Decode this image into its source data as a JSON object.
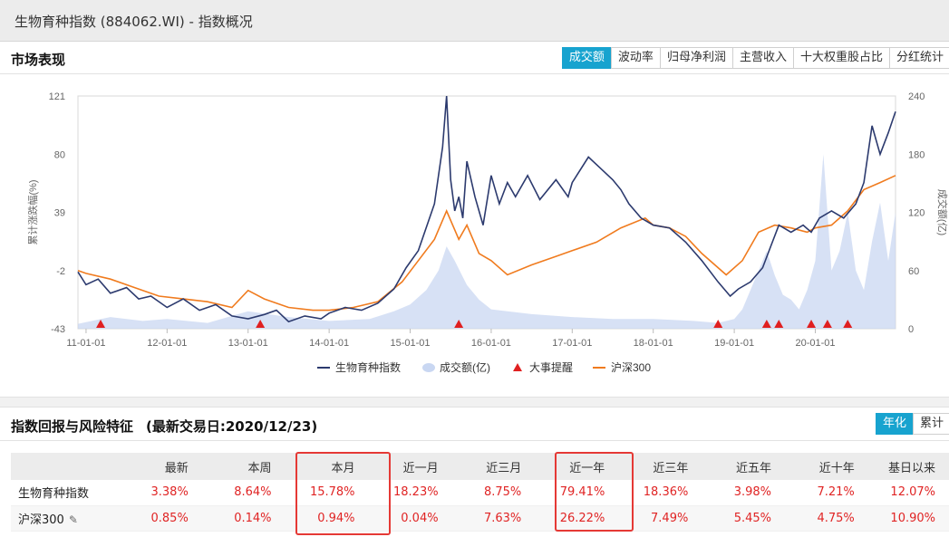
{
  "window_title": "生物育种指数 (884062.WI) - 指数概况",
  "market": {
    "title": "市场表现",
    "tabs": [
      {
        "label": "成交额",
        "active": true
      },
      {
        "label": "波动率",
        "active": false
      },
      {
        "label": "归母净利润",
        "active": false
      },
      {
        "label": "主营收入",
        "active": false
      },
      {
        "label": "十大权重股占比",
        "active": false
      },
      {
        "label": "分红统计",
        "active": false
      }
    ]
  },
  "chart_data": {
    "type": "line",
    "ylabel": "累计涨跌幅(%)",
    "y2label": "成交额(亿)",
    "yticks": [
      "121",
      "80",
      "39",
      "-2",
      "-43"
    ],
    "y2ticks": [
      "240",
      "180",
      "120",
      "60",
      "0"
    ],
    "ylim": [
      -43,
      121
    ],
    "y2lim": [
      0,
      240
    ],
    "xticks": [
      "11-01-01",
      "12-01-01",
      "13-01-01",
      "14-01-01",
      "15-01-01",
      "16-01-01",
      "17-01-01",
      "18-01-01",
      "19-01-01",
      "20-01-01"
    ],
    "xlim": [
      2010.9,
      2020.99
    ],
    "legend": [
      "生物育种指数",
      "成交额(亿)",
      "大事提醒",
      "沪深300"
    ],
    "colors": {
      "index": "#2c3a6e",
      "volume": "#c9d7f2",
      "events": "#e02020",
      "hs300": "#f07b1e"
    },
    "series": [
      {
        "name": "生物育种指数",
        "x": [
          2010.9,
          2011.0,
          2011.15,
          2011.3,
          2011.5,
          2011.65,
          2011.8,
          2012.0,
          2012.2,
          2012.4,
          2012.6,
          2012.8,
          2013.0,
          2013.2,
          2013.35,
          2013.5,
          2013.7,
          2013.9,
          2014.0,
          2014.2,
          2014.4,
          2014.6,
          2014.8,
          2014.95,
          2015.1,
          2015.3,
          2015.4,
          2015.45,
          2015.5,
          2015.55,
          2015.6,
          2015.65,
          2015.7,
          2015.8,
          2015.9,
          2016.0,
          2016.1,
          2016.2,
          2016.3,
          2016.45,
          2016.6,
          2016.8,
          2016.95,
          2017.0,
          2017.2,
          2017.35,
          2017.5,
          2017.6,
          2017.7,
          2017.85,
          2018.0,
          2018.2,
          2018.4,
          2018.6,
          2018.8,
          2018.95,
          2019.05,
          2019.2,
          2019.35,
          2019.45,
          2019.55,
          2019.7,
          2019.85,
          2019.95,
          2020.05,
          2020.2,
          2020.35,
          2020.5,
          2020.6,
          2020.7,
          2020.8,
          2020.9,
          2020.99
        ],
        "values": [
          -3,
          -12,
          -8,
          -18,
          -14,
          -22,
          -20,
          -28,
          -22,
          -30,
          -26,
          -34,
          -36,
          -33,
          -30,
          -38,
          -34,
          -36,
          -32,
          -28,
          -30,
          -25,
          -15,
          0,
          12,
          45,
          85,
          121,
          62,
          40,
          50,
          35,
          75,
          50,
          30,
          65,
          45,
          60,
          50,
          65,
          48,
          62,
          50,
          60,
          78,
          70,
          62,
          55,
          45,
          35,
          30,
          28,
          18,
          5,
          -10,
          -20,
          -15,
          -10,
          0,
          15,
          30,
          25,
          30,
          25,
          35,
          40,
          35,
          45,
          60,
          100,
          80,
          95,
          110
        ]
      },
      {
        "name": "沪深300",
        "x": [
          2010.9,
          2011.0,
          2011.3,
          2011.6,
          2011.9,
          2012.2,
          2012.5,
          2012.8,
          2013.0,
          2013.2,
          2013.5,
          2013.8,
          2014.0,
          2014.3,
          2014.6,
          2014.9,
          2015.1,
          2015.3,
          2015.45,
          2015.6,
          2015.7,
          2015.85,
          2016.0,
          2016.2,
          2016.5,
          2016.8,
          2017.0,
          2017.3,
          2017.6,
          2017.9,
          2018.0,
          2018.2,
          2018.4,
          2018.6,
          2018.9,
          2019.1,
          2019.3,
          2019.5,
          2019.7,
          2019.9,
          2020.0,
          2020.2,
          2020.4,
          2020.6,
          2020.8,
          2020.99
        ],
        "values": [
          -2,
          -4,
          -8,
          -14,
          -20,
          -22,
          -24,
          -28,
          -16,
          -22,
          -28,
          -30,
          -30,
          -28,
          -24,
          -10,
          5,
          20,
          40,
          20,
          30,
          10,
          5,
          -5,
          2,
          8,
          12,
          18,
          28,
          35,
          30,
          28,
          22,
          10,
          -5,
          5,
          25,
          30,
          28,
          25,
          28,
          30,
          40,
          55,
          60,
          65
        ]
      },
      {
        "name": "成交额(亿)",
        "x": [
          2010.9,
          2011.3,
          2011.7,
          2012.0,
          2012.5,
          2013.0,
          2013.5,
          2014.0,
          2014.5,
          2014.8,
          2015.0,
          2015.2,
          2015.35,
          2015.45,
          2015.55,
          2015.7,
          2015.85,
          2016.0,
          2016.5,
          2017.0,
          2017.5,
          2018.0,
          2018.5,
          2018.8,
          2019.0,
          2019.1,
          2019.2,
          2019.3,
          2019.4,
          2019.5,
          2019.6,
          2019.7,
          2019.8,
          2019.9,
          2020.0,
          2020.1,
          2020.2,
          2020.3,
          2020.4,
          2020.5,
          2020.6,
          2020.7,
          2020.8,
          2020.9,
          2020.99
        ],
        "values": [
          5,
          12,
          8,
          10,
          6,
          18,
          12,
          8,
          10,
          18,
          25,
          40,
          60,
          85,
          70,
          45,
          30,
          20,
          15,
          12,
          10,
          10,
          8,
          6,
          10,
          20,
          40,
          60,
          80,
          55,
          35,
          30,
          20,
          40,
          70,
          180,
          60,
          80,
          120,
          60,
          40,
          90,
          130,
          70,
          120
        ]
      }
    ],
    "events_x": [
      2011.18,
      2013.15,
      2015.6,
      2018.8,
      2019.4,
      2019.55,
      2019.95,
      2020.15,
      2020.4
    ]
  },
  "returns": {
    "title": "指数回报与风险特征",
    "subtitle": "(最新交易日:2020/12/23)",
    "toggle": [
      {
        "label": "年化",
        "active": true
      },
      {
        "label": "累计",
        "active": false
      }
    ],
    "columns": [
      "最新",
      "本周",
      "本月",
      "近一月",
      "近三月",
      "近一年",
      "近三年",
      "近五年",
      "近十年",
      "基日以来"
    ],
    "rows": [
      {
        "name": "生物育种指数",
        "values": [
          "3.38%",
          "8.64%",
          "15.78%",
          "18.23%",
          "8.75%",
          "79.41%",
          "18.36%",
          "3.98%",
          "7.21%",
          "12.07%"
        ]
      },
      {
        "name": "沪深300",
        "values": [
          "0.85%",
          "0.14%",
          "0.94%",
          "0.04%",
          "7.63%",
          "26.22%",
          "7.49%",
          "5.45%",
          "4.75%",
          "10.90%"
        ]
      }
    ]
  }
}
